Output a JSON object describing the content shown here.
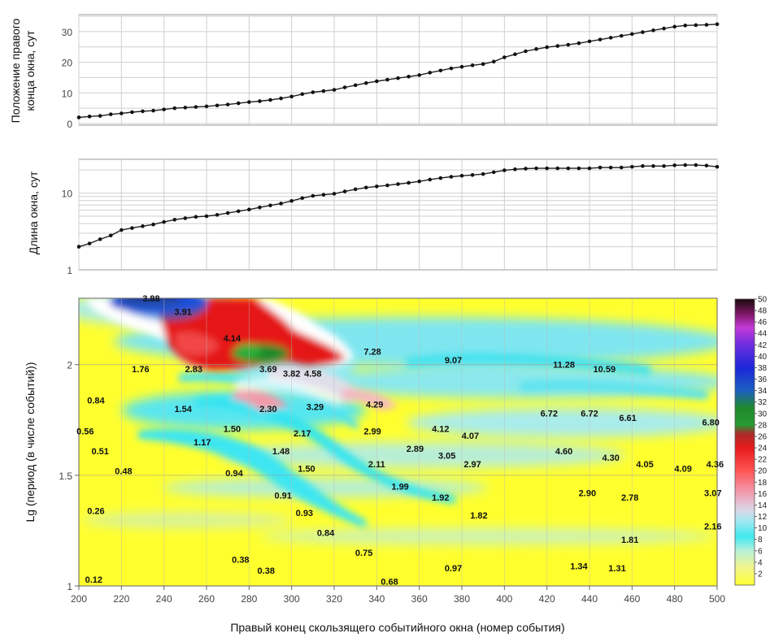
{
  "chart_data": [
    {
      "type": "line",
      "ylabel_lines": [
        "Положение правого",
        "конца окна, сут"
      ],
      "xlim": [
        200,
        500
      ],
      "ylim": [
        0,
        35
      ],
      "yticks": [
        "0",
        "10",
        "20",
        "30"
      ],
      "grid": true,
      "series": [
        {
          "x": [
            200,
            205,
            210,
            215,
            220,
            225,
            230,
            235,
            240,
            245,
            250,
            255,
            260,
            265,
            270,
            275,
            280,
            285,
            290,
            295,
            300,
            305,
            310,
            315,
            320,
            325,
            330,
            335,
            340,
            345,
            350,
            355,
            360,
            365,
            370,
            375,
            380,
            385,
            390,
            395,
            400,
            405,
            410,
            415,
            420,
            425,
            430,
            435,
            440,
            445,
            450,
            455,
            460,
            465,
            470,
            475,
            480,
            485,
            490,
            495,
            500
          ],
          "y": [
            2,
            2.3,
            2.5,
            3,
            3.3,
            3.7,
            4,
            4.2,
            4.6,
            5,
            5.2,
            5.4,
            5.6,
            5.9,
            6.2,
            6.6,
            7,
            7.3,
            7.7,
            8.2,
            8.8,
            9.6,
            10.2,
            10.6,
            11,
            11.8,
            12.5,
            13.2,
            13.8,
            14.3,
            14.8,
            15.3,
            15.8,
            16.6,
            17.3,
            18,
            18.5,
            19,
            19.4,
            20.2,
            21.6,
            22.6,
            23.6,
            24.3,
            24.9,
            25.3,
            25.7,
            26.2,
            26.8,
            27.4,
            28,
            28.6,
            29.2,
            29.8,
            30.4,
            31,
            31.6,
            32,
            32.1,
            32.2,
            32.4
          ]
        }
      ]
    },
    {
      "type": "line",
      "ylabel": "Длина окна, сут",
      "yscale": "log",
      "xlim": [
        200,
        500
      ],
      "ylim": [
        1,
        25
      ],
      "yticks": [
        "1",
        "10"
      ],
      "grid": true,
      "series": [
        {
          "x": [
            200,
            205,
            210,
            215,
            220,
            225,
            230,
            235,
            240,
            245,
            250,
            255,
            260,
            265,
            270,
            275,
            280,
            285,
            290,
            295,
            300,
            305,
            310,
            315,
            320,
            325,
            330,
            335,
            340,
            345,
            350,
            355,
            360,
            365,
            370,
            375,
            380,
            385,
            390,
            395,
            400,
            405,
            410,
            415,
            420,
            425,
            430,
            435,
            440,
            445,
            450,
            455,
            460,
            465,
            470,
            475,
            480,
            485,
            490,
            495,
            500
          ],
          "y": [
            2,
            2.2,
            2.5,
            2.8,
            3.3,
            3.5,
            3.7,
            3.9,
            4.2,
            4.5,
            4.7,
            4.9,
            5,
            5.2,
            5.5,
            5.8,
            6.1,
            6.5,
            6.9,
            7.3,
            7.9,
            8.6,
            9.2,
            9.5,
            9.8,
            10.5,
            11.2,
            11.8,
            12.2,
            12.6,
            13.1,
            13.6,
            14.2,
            15,
            15.7,
            16.3,
            16.8,
            17.2,
            17.7,
            18.7,
            19.8,
            20.4,
            20.8,
            21,
            21,
            21,
            21,
            21,
            21,
            21.5,
            21.5,
            21.5,
            22,
            22.5,
            22.5,
            22.5,
            23,
            23.2,
            23.2,
            22.8,
            22
          ]
        }
      ]
    },
    {
      "type": "heatmap",
      "xlabel": "Правый конец скользящего событийного окна (номер события)",
      "ylabel": "Lg (период (в числе событий))",
      "xlim": [
        200,
        500
      ],
      "ylim": [
        1,
        2.3
      ],
      "xticks": [
        "200",
        "220",
        "240",
        "260",
        "280",
        "300",
        "320",
        "340",
        "360",
        "380",
        "400",
        "420",
        "440",
        "460",
        "480",
        "500"
      ],
      "yticks": [
        "1",
        "1.5",
        "2"
      ],
      "colorbar": {
        "min": 0,
        "max": 50,
        "ticks": [
          "2",
          "4",
          "6",
          "8",
          "10",
          "12",
          "14",
          "16",
          "18",
          "20",
          "22",
          "24",
          "26",
          "28",
          "30",
          "32",
          "34",
          "36",
          "38",
          "40",
          "42",
          "44",
          "46",
          "48",
          "50"
        ]
      },
      "annotations": [
        {
          "text": "3.88",
          "x": 234,
          "y": 2.3
        },
        {
          "text": "3.91",
          "x": 249,
          "y": 2.24
        },
        {
          "text": "4.14",
          "x": 272,
          "y": 2.12
        },
        {
          "text": "2.83",
          "x": 254,
          "y": 1.98
        },
        {
          "text": "3.69",
          "x": 289,
          "y": 1.98
        },
        {
          "text": "3.82",
          "x": 300,
          "y": 1.96
        },
        {
          "text": "4.58",
          "x": 310,
          "y": 1.96
        },
        {
          "text": "7.28",
          "x": 338,
          "y": 2.06
        },
        {
          "text": "9.07",
          "x": 376,
          "y": 2.02
        },
        {
          "text": "11.28",
          "x": 428,
          "y": 2.0
        },
        {
          "text": "10.59",
          "x": 447,
          "y": 1.98
        },
        {
          "text": "1.76",
          "x": 229,
          "y": 1.98
        },
        {
          "text": "0.84",
          "x": 208,
          "y": 1.84
        },
        {
          "text": "1.54",
          "x": 249,
          "y": 1.8
        },
        {
          "text": "2.30",
          "x": 289,
          "y": 1.8
        },
        {
          "text": "3.29",
          "x": 311,
          "y": 1.81
        },
        {
          "text": "4.29",
          "x": 339,
          "y": 1.82
        },
        {
          "text": "6.72",
          "x": 421,
          "y": 1.78
        },
        {
          "text": "6.72",
          "x": 440,
          "y": 1.78
        },
        {
          "text": "6.61",
          "x": 458,
          "y": 1.76
        },
        {
          "text": "6.80",
          "x": 497,
          "y": 1.74
        },
        {
          "text": "0.56",
          "x": 203,
          "y": 1.7
        },
        {
          "text": "1.50",
          "x": 272,
          "y": 1.71
        },
        {
          "text": "2.17",
          "x": 305,
          "y": 1.69
        },
        {
          "text": "2.99",
          "x": 338,
          "y": 1.7
        },
        {
          "text": "4.12",
          "x": 370,
          "y": 1.71
        },
        {
          "text": "4.07",
          "x": 384,
          "y": 1.68
        },
        {
          "text": "1.17",
          "x": 258,
          "y": 1.65
        },
        {
          "text": "0.51",
          "x": 210,
          "y": 1.61
        },
        {
          "text": "1.48",
          "x": 295,
          "y": 1.61
        },
        {
          "text": "2.89",
          "x": 358,
          "y": 1.62
        },
        {
          "text": "3.05",
          "x": 373,
          "y": 1.59
        },
        {
          "text": "4.60",
          "x": 428,
          "y": 1.61
        },
        {
          "text": "4.30",
          "x": 450,
          "y": 1.58
        },
        {
          "text": "4.05",
          "x": 466,
          "y": 1.55
        },
        {
          "text": "4.09",
          "x": 484,
          "y": 1.53
        },
        {
          "text": "4.36",
          "x": 499,
          "y": 1.55
        },
        {
          "text": "0.48",
          "x": 221,
          "y": 1.52
        },
        {
          "text": "0.94",
          "x": 273,
          "y": 1.51
        },
        {
          "text": "1.50",
          "x": 307,
          "y": 1.53
        },
        {
          "text": "2.11",
          "x": 340,
          "y": 1.55
        },
        {
          "text": "2.97",
          "x": 385,
          "y": 1.55
        },
        {
          "text": "1.99",
          "x": 351,
          "y": 1.45
        },
        {
          "text": "0.91",
          "x": 296,
          "y": 1.41
        },
        {
          "text": "1.92",
          "x": 370,
          "y": 1.4
        },
        {
          "text": "2.90",
          "x": 439,
          "y": 1.42
        },
        {
          "text": "2.78",
          "x": 459,
          "y": 1.4
        },
        {
          "text": "3.07",
          "x": 498,
          "y": 1.42
        },
        {
          "text": "0.26",
          "x": 208,
          "y": 1.34
        },
        {
          "text": "0.93",
          "x": 306,
          "y": 1.33
        },
        {
          "text": "1.82",
          "x": 388,
          "y": 1.32
        },
        {
          "text": "0.84",
          "x": 316,
          "y": 1.24
        },
        {
          "text": "2.16",
          "x": 498,
          "y": 1.27
        },
        {
          "text": "1.81",
          "x": 459,
          "y": 1.21
        },
        {
          "text": "0.75",
          "x": 334,
          "y": 1.15
        },
        {
          "text": "0.38",
          "x": 276,
          "y": 1.12
        },
        {
          "text": "0.38",
          "x": 288,
          "y": 1.07
        },
        {
          "text": "0.97",
          "x": 376,
          "y": 1.08
        },
        {
          "text": "1.34",
          "x": 435,
          "y": 1.09
        },
        {
          "text": "1.31",
          "x": 453,
          "y": 1.08
        },
        {
          "text": "0.12",
          "x": 207,
          "y": 1.03
        },
        {
          "text": "0.68",
          "x": 346,
          "y": 1.02
        }
      ]
    }
  ]
}
